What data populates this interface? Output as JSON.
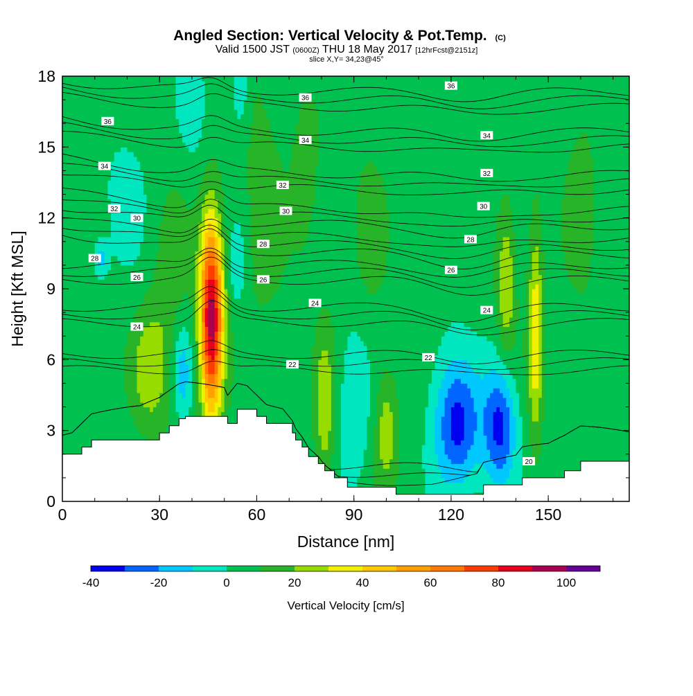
{
  "header": {
    "title_main": "Angled Section: Vertical Velocity & Pot.Temp.",
    "title_flag": "(C)",
    "valid_a": "Valid 1500 JST",
    "valid_b": "(0600Z)",
    "valid_c": "THU 18 May 2017",
    "valid_d": "[12hrFcst@2151z]",
    "slice": "slice X,Y= 34,23@45°"
  },
  "chart_data": {
    "type": "heatmap",
    "title": "Angled Section: Vertical Velocity & Pot.Temp. (C)",
    "xlabel": "Distance [nm]",
    "ylabel": "Height [Kft MSL]",
    "xlim": [
      0,
      175
    ],
    "ylim": [
      0,
      18
    ],
    "xticks": [
      0,
      30,
      60,
      90,
      120,
      150
    ],
    "yticks": [
      0,
      3,
      6,
      9,
      12,
      15,
      18
    ],
    "grid": false,
    "colorbar": {
      "label": "Vertical Velocity [cm/s]",
      "range": [
        -40,
        110
      ],
      "step": 10,
      "tick_values": [
        -40,
        -20,
        0,
        20,
        40,
        60,
        80,
        100
      ],
      "colors": [
        "#0000f0",
        "#0066ff",
        "#00c8ff",
        "#00e6be",
        "#00c050",
        "#28b428",
        "#96dc00",
        "#f0f000",
        "#ffc800",
        "#ffa000",
        "#ff7800",
        "#ff3c00",
        "#e6001e",
        "#aa0050",
        "#640096"
      ],
      "placement": "bottom"
    },
    "background_value": 5,
    "terrain_profile": {
      "x": [
        0,
        3,
        6,
        9,
        24,
        30,
        33,
        36,
        38,
        50,
        51,
        54,
        57,
        60,
        63,
        68,
        71,
        72,
        74,
        76,
        79,
        81,
        84,
        88,
        103,
        113,
        121,
        128,
        130,
        140,
        142,
        150,
        155,
        160,
        175
      ],
      "y": [
        2.0,
        2.0,
        2.3,
        2.6,
        2.6,
        2.9,
        3.2,
        3.5,
        3.6,
        3.6,
        3.3,
        3.9,
        3.9,
        3.6,
        3.3,
        3.3,
        2.9,
        2.6,
        2.3,
        1.9,
        1.6,
        1.3,
        1.0,
        0.6,
        0.3,
        0.3,
        0.3,
        0.3,
        0.7,
        0.7,
        1.0,
        1.0,
        1.3,
        1.7,
        1.7
      ]
    },
    "velocity_features": [
      {
        "x": 46,
        "y": 7.8,
        "sx": 2.5,
        "sy": 2.9,
        "peak": 90
      },
      {
        "x": 27,
        "y": 5.6,
        "sx": 4,
        "sy": 1.7,
        "peak": 20
      },
      {
        "x": 37,
        "y": 5.5,
        "sx": 2.2,
        "sy": 1.4,
        "peak": -22
      },
      {
        "x": 54,
        "y": 10.0,
        "sx": 1.6,
        "sy": 1.2,
        "peak": -16
      },
      {
        "x": 55,
        "y": 17.5,
        "sx": 1.8,
        "sy": 1.3,
        "peak": -16
      },
      {
        "x": 81,
        "y": 4.0,
        "sx": 2.2,
        "sy": 2.4,
        "peak": 22
      },
      {
        "x": 90,
        "y": 4.0,
        "sx": 3.5,
        "sy": 2.5,
        "peak": -14
      },
      {
        "x": 100,
        "y": 3.0,
        "sx": 2.5,
        "sy": 1.8,
        "peak": 21
      },
      {
        "x": 122,
        "y": 3.2,
        "sx": 5.0,
        "sy": 1.9,
        "peak": -38
      },
      {
        "x": 135,
        "y": 3.2,
        "sx": 3.5,
        "sy": 1.8,
        "peak": -38
      },
      {
        "x": 137,
        "y": 9.3,
        "sx": 2.0,
        "sy": 2.2,
        "peak": 25
      },
      {
        "x": 146,
        "y": 7.2,
        "sx": 1.6,
        "sy": 3.2,
        "peak": 32
      },
      {
        "x": 12,
        "y": 10.3,
        "sx": 1.5,
        "sy": 0.5,
        "peak": -20
      },
      {
        "x": 33,
        "y": 9.0,
        "sx": 5,
        "sy": 4,
        "peak": 9
      },
      {
        "x": 62,
        "y": 13.0,
        "sx": 5,
        "sy": 4.5,
        "peak": 9
      },
      {
        "x": 75,
        "y": 14.0,
        "sx": 3,
        "sy": 2.5,
        "peak": 10
      },
      {
        "x": 95,
        "y": 11.5,
        "sx": 4,
        "sy": 3,
        "peak": 8
      },
      {
        "x": 20,
        "y": 13.0,
        "sx": 6,
        "sy": 2.5,
        "peak": -8
      },
      {
        "x": 40,
        "y": 16.5,
        "sx": 4,
        "sy": 2,
        "peak": -8
      },
      {
        "x": 160,
        "y": 13.0,
        "sx": 4,
        "sy": 4,
        "peak": 8
      },
      {
        "x": 115,
        "y": 8.0,
        "sx": 6,
        "sy": 3,
        "peak": -3
      }
    ],
    "theta_contours": {
      "levels": [
        20,
        22,
        24,
        26,
        28,
        30,
        32,
        34,
        36
      ],
      "reference_heights": [
        1.2,
        5.9,
        7.9,
        9.7,
        10.8,
        12.0,
        13.5,
        15.3,
        17.0
      ],
      "labels": [
        {
          "text": "36",
          "x": 14,
          "y": 16.1
        },
        {
          "text": "36",
          "x": 75,
          "y": 17.1
        },
        {
          "text": "36",
          "x": 120,
          "y": 17.6
        },
        {
          "text": "34",
          "x": 13,
          "y": 14.2
        },
        {
          "text": "34",
          "x": 75,
          "y": 15.3
        },
        {
          "text": "34",
          "x": 131,
          "y": 15.5
        },
        {
          "text": "32",
          "x": 16,
          "y": 12.4
        },
        {
          "text": "32",
          "x": 68,
          "y": 13.4
        },
        {
          "text": "32",
          "x": 131,
          "y": 13.9
        },
        {
          "text": "30",
          "x": 23,
          "y": 12.0
        },
        {
          "text": "30",
          "x": 69,
          "y": 12.3
        },
        {
          "text": "30",
          "x": 130,
          "y": 12.5
        },
        {
          "text": "28",
          "x": 10,
          "y": 10.3
        },
        {
          "text": "28",
          "x": 62,
          "y": 10.9
        },
        {
          "text": "28",
          "x": 126,
          "y": 11.1
        },
        {
          "text": "26",
          "x": 23,
          "y": 9.5
        },
        {
          "text": "26",
          "x": 62,
          "y": 9.4
        },
        {
          "text": "26",
          "x": 120,
          "y": 9.8
        },
        {
          "text": "24",
          "x": 23,
          "y": 7.4
        },
        {
          "text": "24",
          "x": 78,
          "y": 8.4
        },
        {
          "text": "24",
          "x": 131,
          "y": 8.1
        },
        {
          "text": "22",
          "x": 71,
          "y": 5.8
        },
        {
          "text": "22",
          "x": 113,
          "y": 6.1
        },
        {
          "text": "20",
          "x": 144,
          "y": 1.7
        }
      ]
    }
  }
}
